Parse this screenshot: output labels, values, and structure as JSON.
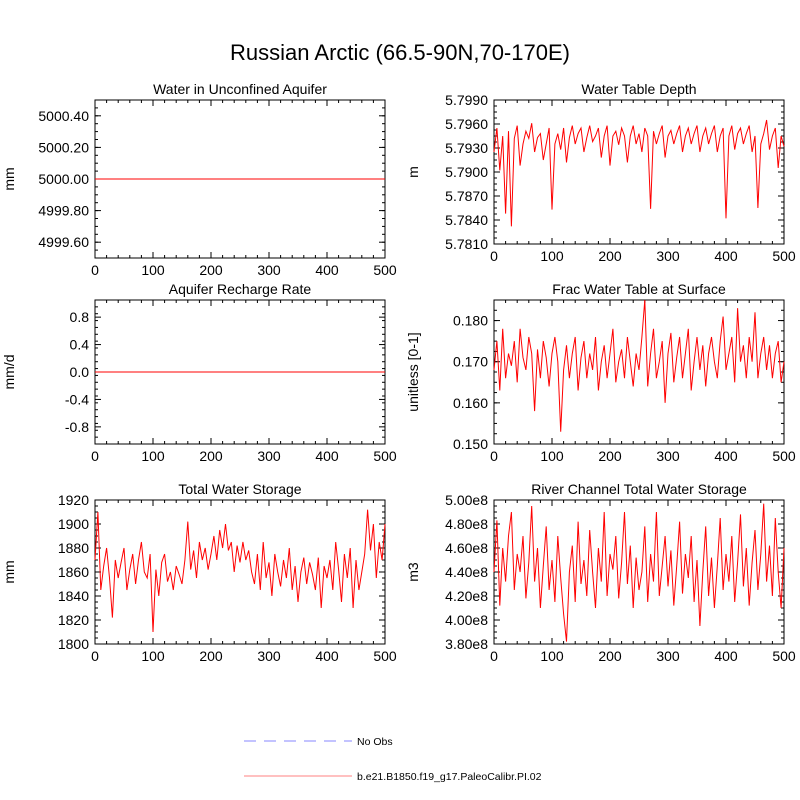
{
  "figure_title": "Russian Arctic (66.5-90N,70-170E)",
  "colors": {
    "model": "#ff0000",
    "obs": "#9f9fff",
    "axis": "#000000"
  },
  "legend": {
    "items": [
      {
        "label": "No Obs",
        "style": "dashed",
        "color": "#9f9fff"
      },
      {
        "label": "b.e21.B1850.f19_g17.PaleoCalibr.PI.02",
        "style": "solid",
        "color": "#ff9a9a"
      }
    ]
  },
  "chart_data": [
    {
      "type": "line",
      "title": "Water in Unconfined Aquifer",
      "ylabel": "mm",
      "xlabel": "",
      "xlim": [
        0,
        500
      ],
      "ylim": [
        4999.5,
        5000.5
      ],
      "xticks": [
        "0",
        "100",
        "200",
        "300",
        "400",
        "500"
      ],
      "yticks": [
        "4999.60",
        "4999.80",
        "5000.00",
        "5000.20",
        "5000.40"
      ],
      "grid": false,
      "series": [
        {
          "values_x": [
            0,
            500
          ],
          "values_y": [
            5000.0,
            5000.0
          ]
        }
      ]
    },
    {
      "type": "line",
      "title": "Water Table Depth",
      "ylabel": "m",
      "xlabel": "",
      "xlim": [
        0,
        500
      ],
      "ylim": [
        5.781,
        5.799
      ],
      "xticks": [
        "0",
        "100",
        "200",
        "300",
        "400",
        "500"
      ],
      "yticks": [
        "5.7810",
        "5.7840",
        "5.7870",
        "5.7900",
        "5.7930",
        "5.7960",
        "5.7990"
      ],
      "grid": false,
      "series": [
        {
          "values_x": [
            0,
            5,
            10,
            15,
            20,
            25,
            30,
            35,
            40,
            45,
            50,
            55,
            60,
            65,
            70,
            75,
            80,
            85,
            90,
            95,
            100,
            105,
            110,
            115,
            120,
            125,
            130,
            135,
            140,
            145,
            150,
            155,
            160,
            165,
            170,
            175,
            180,
            185,
            190,
            195,
            200,
            205,
            210,
            215,
            220,
            225,
            230,
            235,
            240,
            245,
            250,
            255,
            260,
            265,
            270,
            275,
            280,
            285,
            290,
            295,
            300,
            305,
            310,
            315,
            320,
            325,
            330,
            335,
            340,
            345,
            350,
            355,
            360,
            365,
            370,
            375,
            380,
            385,
            390,
            395,
            400,
            405,
            410,
            415,
            420,
            425,
            430,
            435,
            440,
            445,
            450,
            455,
            460,
            465,
            470,
            475,
            480,
            485,
            490,
            495,
            500
          ],
          "values_y": [
            5.7925,
            5.7955,
            5.7902,
            5.7945,
            5.7848,
            5.7951,
            5.7832,
            5.7942,
            5.7958,
            5.7908,
            5.7935,
            5.7951,
            5.7942,
            5.7961,
            5.7925,
            5.7943,
            5.7948,
            5.7915,
            5.7935,
            5.7955,
            5.7853,
            5.7935,
            5.7948,
            5.7928,
            5.7955,
            5.7912,
            5.7943,
            5.7958,
            5.7935,
            5.7948,
            5.7955,
            5.7925,
            5.7943,
            5.7958,
            5.7938,
            5.7945,
            5.7955,
            5.7918,
            5.7945,
            5.7958,
            5.7908,
            5.7945,
            5.7951,
            5.7934,
            5.7955,
            5.7945,
            5.7912,
            5.7945,
            5.7958,
            5.7935,
            5.7948,
            5.7925,
            5.7955,
            5.7945,
            5.7854,
            5.7951,
            5.7935,
            5.7948,
            5.7958,
            5.7918,
            5.7945,
            5.7952,
            5.7935,
            5.7948,
            5.7958,
            5.7925,
            5.7945,
            5.7955,
            5.7935,
            5.7948,
            5.7958,
            5.7925,
            5.7945,
            5.7955,
            5.7935,
            5.7948,
            5.7958,
            5.7925,
            5.7945,
            5.7955,
            5.7842,
            5.7945,
            5.7958,
            5.7928,
            5.7948,
            5.7955,
            5.7935,
            5.7948,
            5.7958,
            5.7925,
            5.7945,
            5.7855,
            5.7935,
            5.7948,
            5.7965,
            5.7928,
            5.7945,
            5.7955,
            5.7905,
            5.7945,
            5.7932
          ]
        }
      ]
    },
    {
      "type": "line",
      "title": "Aquifer Recharge Rate",
      "ylabel": "mm/d",
      "xlabel": "",
      "xlim": [
        0,
        500
      ],
      "ylim": [
        -1.05,
        1.05
      ],
      "xticks": [
        "0",
        "100",
        "200",
        "300",
        "400",
        "500"
      ],
      "yticks": [
        "-0.8",
        "-0.4",
        "0.0",
        "0.4",
        "0.8"
      ],
      "grid": false,
      "series": [
        {
          "values_x": [
            0,
            500
          ],
          "values_y": [
            0,
            0
          ]
        }
      ]
    },
    {
      "type": "line",
      "title": "Frac Water Table at Surface",
      "ylabel": "unitless [0-1]",
      "xlabel": "",
      "xlim": [
        0,
        500
      ],
      "ylim": [
        0.15,
        0.185
      ],
      "xticks": [
        "0",
        "100",
        "200",
        "300",
        "400",
        "500"
      ],
      "yticks": [
        "0.150",
        "0.160",
        "0.170",
        "0.180"
      ],
      "grid": false,
      "series": [
        {
          "values_x": [
            0,
            5,
            10,
            15,
            20,
            25,
            30,
            35,
            40,
            45,
            50,
            55,
            60,
            65,
            70,
            75,
            80,
            85,
            90,
            95,
            100,
            105,
            110,
            115,
            120,
            125,
            130,
            135,
            140,
            145,
            150,
            155,
            160,
            165,
            170,
            175,
            180,
            185,
            190,
            195,
            200,
            205,
            210,
            215,
            220,
            225,
            230,
            235,
            240,
            245,
            250,
            255,
            260,
            265,
            270,
            275,
            280,
            285,
            290,
            295,
            300,
            305,
            310,
            315,
            320,
            325,
            330,
            335,
            340,
            345,
            350,
            355,
            360,
            365,
            370,
            375,
            380,
            385,
            390,
            395,
            400,
            405,
            410,
            415,
            420,
            425,
            430,
            435,
            440,
            445,
            450,
            455,
            460,
            465,
            470,
            475,
            480,
            485,
            490,
            495,
            500
          ],
          "values_y": [
            0.168,
            0.175,
            0.163,
            0.178,
            0.166,
            0.172,
            0.169,
            0.175,
            0.165,
            0.178,
            0.171,
            0.168,
            0.176,
            0.172,
            0.158,
            0.173,
            0.166,
            0.175,
            0.171,
            0.164,
            0.172,
            0.176,
            0.17,
            0.153,
            0.168,
            0.174,
            0.166,
            0.172,
            0.176,
            0.163,
            0.171,
            0.175,
            0.166,
            0.172,
            0.168,
            0.176,
            0.163,
            0.17,
            0.174,
            0.166,
            0.172,
            0.178,
            0.165,
            0.17,
            0.173,
            0.166,
            0.176,
            0.17,
            0.164,
            0.172,
            0.168,
            0.176,
            0.185,
            0.164,
            0.172,
            0.178,
            0.166,
            0.17,
            0.175,
            0.16,
            0.172,
            0.177,
            0.165,
            0.171,
            0.176,
            0.166,
            0.172,
            0.178,
            0.163,
            0.17,
            0.176,
            0.168,
            0.174,
            0.164,
            0.172,
            0.176,
            0.17,
            0.166,
            0.175,
            0.181,
            0.168,
            0.172,
            0.176,
            0.165,
            0.183,
            0.17,
            0.174,
            0.166,
            0.176,
            0.17,
            0.182,
            0.166,
            0.172,
            0.176,
            0.168,
            0.174,
            0.166,
            0.172,
            0.175,
            0.165,
            0.17
          ]
        }
      ]
    },
    {
      "type": "line",
      "title": "Total Water Storage",
      "ylabel": "mm",
      "xlabel": "",
      "xlim": [
        0,
        500
      ],
      "ylim": [
        1800,
        1920
      ],
      "xticks": [
        "0",
        "100",
        "200",
        "300",
        "400",
        "500"
      ],
      "yticks": [
        "1800",
        "1820",
        "1840",
        "1860",
        "1880",
        "1900",
        "1920"
      ],
      "grid": false,
      "series": [
        {
          "values_x": [
            0,
            5,
            10,
            15,
            20,
            25,
            30,
            35,
            40,
            45,
            50,
            55,
            60,
            65,
            70,
            75,
            80,
            85,
            90,
            95,
            100,
            105,
            110,
            115,
            120,
            125,
            130,
            135,
            140,
            145,
            150,
            155,
            160,
            165,
            170,
            175,
            180,
            185,
            190,
            195,
            200,
            205,
            210,
            215,
            220,
            225,
            230,
            235,
            240,
            245,
            250,
            255,
            260,
            265,
            270,
            275,
            280,
            285,
            290,
            295,
            300,
            305,
            310,
            315,
            320,
            325,
            330,
            335,
            340,
            345,
            350,
            355,
            360,
            365,
            370,
            375,
            380,
            385,
            390,
            395,
            400,
            405,
            410,
            415,
            420,
            425,
            430,
            435,
            440,
            445,
            450,
            455,
            460,
            465,
            470,
            475,
            480,
            485,
            490,
            495,
            500
          ],
          "values_y": [
            1870,
            1910,
            1845,
            1865,
            1880,
            1855,
            1822,
            1870,
            1855,
            1868,
            1880,
            1845,
            1862,
            1875,
            1850,
            1870,
            1885,
            1860,
            1855,
            1875,
            1810,
            1862,
            1840,
            1868,
            1875,
            1852,
            1860,
            1845,
            1865,
            1858,
            1850,
            1870,
            1902,
            1862,
            1878,
            1855,
            1885,
            1870,
            1880,
            1862,
            1875,
            1890,
            1870,
            1895,
            1880,
            1900,
            1878,
            1885,
            1860,
            1882,
            1868,
            1885,
            1870,
            1878,
            1860,
            1850,
            1875,
            1845,
            1885,
            1855,
            1868,
            1840,
            1875,
            1860,
            1848,
            1870,
            1855,
            1880,
            1845,
            1865,
            1835,
            1860,
            1872,
            1850,
            1868,
            1858,
            1845,
            1872,
            1830,
            1865,
            1855,
            1870,
            1845,
            1885,
            1862,
            1835,
            1875,
            1855,
            1880,
            1830,
            1870,
            1845,
            1860,
            1875,
            1912,
            1878,
            1900,
            1855,
            1885,
            1870,
            1900
          ]
        }
      ]
    },
    {
      "type": "line",
      "title": "River Channel Total Water Storage",
      "ylabel": "m3",
      "xlabel": "",
      "xlim": [
        0,
        500
      ],
      "ylim": [
        380000000,
        500000000
      ],
      "xticks": [
        "0",
        "100",
        "200",
        "300",
        "400",
        "500"
      ],
      "yticks": [
        "3.80e8",
        "4.00e8",
        "4.20e8",
        "4.40e8",
        "4.60e8",
        "4.80e8",
        "5.00e8"
      ],
      "grid": false,
      "series": [
        {
          "values_x": [
            0,
            5,
            10,
            15,
            20,
            25,
            30,
            35,
            40,
            45,
            50,
            55,
            60,
            65,
            70,
            75,
            80,
            85,
            90,
            95,
            100,
            105,
            110,
            115,
            120,
            125,
            130,
            135,
            140,
            145,
            150,
            155,
            160,
            165,
            170,
            175,
            180,
            185,
            190,
            195,
            200,
            205,
            210,
            215,
            220,
            225,
            230,
            235,
            240,
            245,
            250,
            255,
            260,
            265,
            270,
            275,
            280,
            285,
            290,
            295,
            300,
            305,
            310,
            315,
            320,
            325,
            330,
            335,
            340,
            345,
            350,
            355,
            360,
            365,
            370,
            375,
            380,
            385,
            390,
            395,
            400,
            405,
            410,
            415,
            420,
            425,
            430,
            435,
            440,
            445,
            450,
            455,
            460,
            465,
            470,
            475,
            480,
            485,
            490,
            495,
            500
          ],
          "values_y": [
            440000000.0,
            483000000.0,
            412000000.0,
            460000000.0,
            432000000.0,
            470000000.0,
            490000000.0,
            425000000.0,
            455000000.0,
            440000000.0,
            470000000.0,
            418000000.0,
            448000000.0,
            495000000.0,
            432000000.0,
            460000000.0,
            410000000.0,
            445000000.0,
            478000000.0,
            425000000.0,
            450000000.0,
            415000000.0,
            470000000.0,
            435000000.0,
            405000000.0,
            382000000.0,
            440000000.0,
            462000000.0,
            415000000.0,
            482000000.0,
            430000000.0,
            450000000.0,
            420000000.0,
            475000000.0,
            440000000.0,
            410000000.0,
            460000000.0,
            432000000.0,
            490000000.0,
            420000000.0,
            455000000.0,
            442000000.0,
            470000000.0,
            418000000.0,
            448000000.0,
            490000000.0,
            430000000.0,
            462000000.0,
            410000000.0,
            452000000.0,
            425000000.0,
            440000000.0,
            478000000.0,
            415000000.0,
            455000000.0,
            432000000.0,
            490000000.0,
            420000000.0,
            445000000.0,
            470000000.0,
            428000000.0,
            458000000.0,
            412000000.0,
            445000000.0,
            482000000.0,
            422000000.0,
            455000000.0,
            435000000.0,
            470000000.0,
            415000000.0,
            450000000.0,
            395000000.0,
            440000000.0,
            478000000.0,
            420000000.0,
            452000000.0,
            410000000.0,
            445000000.0,
            485000000.0,
            425000000.0,
            455000000.0,
            432000000.0,
            470000000.0,
            415000000.0,
            448000000.0,
            488000000.0,
            428000000.0,
            460000000.0,
            412000000.0,
            448000000.0,
            475000000.0,
            425000000.0,
            455000000.0,
            497000000.0,
            432000000.0,
            462000000.0,
            420000000.0,
            485000000.0,
            440000000.0,
            410000000.0,
            460000000.0
          ]
        }
      ]
    }
  ]
}
